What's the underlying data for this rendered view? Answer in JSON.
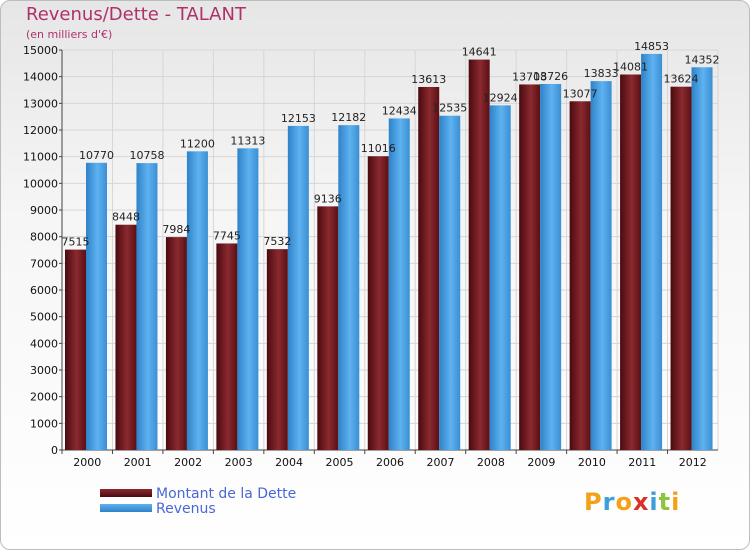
{
  "header": {
    "title": "Revenus/Dette - TALANT",
    "subtitle": "(en milliers d'€)"
  },
  "chart_data": {
    "type": "bar",
    "categories": [
      "2000",
      "2001",
      "2002",
      "2003",
      "2004",
      "2005",
      "2006",
      "2007",
      "2008",
      "2009",
      "2010",
      "2011",
      "2012"
    ],
    "series": [
      {
        "name": "Montant de la Dette",
        "color": "#7a1f24",
        "values": [
          7515,
          8448,
          7984,
          7745,
          7532,
          9136,
          11016,
          13613,
          14641,
          13708,
          13077,
          14081,
          13624
        ],
        "labels": [
          "7515",
          "8448",
          "7984",
          "7745",
          "7532",
          "9136",
          "11016",
          "13613",
          "14641",
          "13708",
          "13077",
          "14081",
          "13624"
        ]
      },
      {
        "name": "Revenus",
        "color": "#4aa3e8",
        "values": [
          10770,
          10758,
          11200,
          11313,
          12153,
          12182,
          12434,
          12535,
          12924,
          13726,
          13833,
          14853,
          14352
        ],
        "labels": [
          "10770",
          "10758",
          "11200",
          "11313",
          "12153",
          "12182",
          "12434",
          "12535",
          "12924",
          "13726",
          "13833",
          "14853",
          "14352"
        ]
      }
    ],
    "yticks": [
      "0",
      "1000",
      "2000",
      "3000",
      "4000",
      "5000",
      "6000",
      "7000",
      "8000",
      "9000",
      "10000",
      "11000",
      "12000",
      "13000",
      "14000",
      "15000"
    ],
    "ylim": [
      0,
      15000
    ],
    "grid": true,
    "legend": "bottom-left"
  },
  "legend": {
    "items": [
      {
        "label": "Montant de la Dette",
        "color": "#5a0f14"
      },
      {
        "label": "Revenus",
        "color": "#4aa3e8"
      }
    ]
  },
  "logo": {
    "text": "Proxiti",
    "letters": [
      "P",
      "r",
      "o",
      "x",
      "i",
      "t",
      "i"
    ],
    "colors": [
      "#f4a11a",
      "#3aa0d8",
      "#f4a11a",
      "#d8322a",
      "#3aa0d8",
      "#8cc63f",
      "#f4a11a"
    ]
  }
}
